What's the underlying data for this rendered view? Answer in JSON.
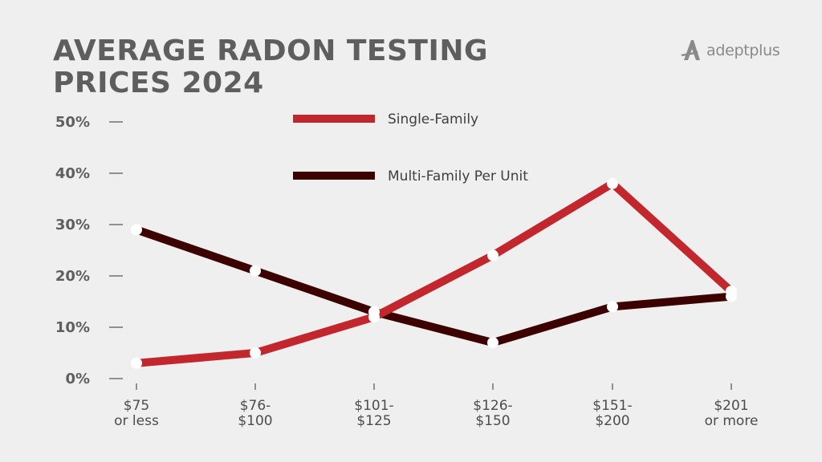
{
  "header": {
    "title_line1": "AVERAGE RADON TESTING",
    "title_line2": "PRICES 2024"
  },
  "logo": {
    "icon": "adeptplus-a-logo-icon",
    "text": "adeptplus"
  },
  "colors": {
    "background": "#efefef",
    "single_family": "#c1272d",
    "multi_family": "#3d0000",
    "marker": "#ffffff",
    "axis_text": "#5f5f5f"
  },
  "legend": [
    {
      "label": "Single-Family",
      "color": "#c1272d"
    },
    {
      "label": "Multi-Family Per Unit",
      "color": "#3d0000"
    }
  ],
  "y_axis": {
    "ticks": [
      "0%",
      "10%",
      "20%",
      "30%",
      "40%",
      "50%"
    ]
  },
  "x_axis": {
    "ticks": [
      {
        "line1": "$75",
        "line2": "or less"
      },
      {
        "line1": "$76-",
        "line2": "$100"
      },
      {
        "line1": "$101-",
        "line2": "$125"
      },
      {
        "line1": "$126-",
        "line2": "$150"
      },
      {
        "line1": "$151-",
        "line2": "$200"
      },
      {
        "line1": "$201",
        "line2": "or more"
      }
    ]
  },
  "chart_data": {
    "type": "line",
    "title": "Average Radon Testing Prices 2024",
    "xlabel": "",
    "ylabel": "",
    "categories": [
      "$75 or less",
      "$76-$100",
      "$101-$125",
      "$126-$150",
      "$151-$200",
      "$201 or more"
    ],
    "series": [
      {
        "name": "Single-Family",
        "color": "#c1272d",
        "values": [
          3,
          5,
          12,
          24,
          38,
          17
        ]
      },
      {
        "name": "Multi-Family Per Unit",
        "color": "#3d0000",
        "values": [
          29,
          21,
          13,
          7,
          14,
          16
        ]
      }
    ],
    "ylim": [
      0,
      50
    ],
    "y_ticks": [
      0,
      10,
      20,
      30,
      40,
      50
    ],
    "y_format": "percent",
    "grid": false,
    "legend_position": "top-center",
    "markers": "white circles"
  }
}
